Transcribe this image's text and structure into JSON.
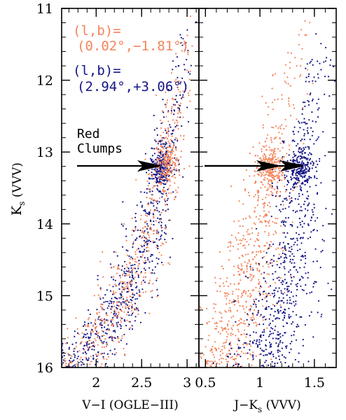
{
  "chart_data": [
    {
      "type": "scatter",
      "panel": "left",
      "xlabel": "V−I (OGLE−III)",
      "ylabel": "K_s (VVV)",
      "xlim": [
        1.62,
        3.13
      ],
      "ylim": [
        16,
        11
      ],
      "y_inverted": true,
      "xticks": [
        2,
        2.5,
        3
      ],
      "xtick_labels": [
        "2",
        "2.5",
        "3"
      ],
      "yticks": [
        11,
        12,
        13,
        14,
        15,
        16
      ],
      "ytick_labels": [
        "11",
        "12",
        "13",
        "14",
        "15",
        "16"
      ],
      "grid": false,
      "legend": [
        {
          "line1": "(l,b)=",
          "line2": "(0.02°,−1.81°)",
          "color": "#f4845a"
        },
        {
          "line1": "(l,b)=",
          "line2": "(2.94°,+3.06°)",
          "color": "#151587"
        }
      ],
      "annotation": {
        "line1": "Red",
        "line2": "Clumps",
        "arrow_from": [
          1.8,
          13.2
        ],
        "arrow_to": [
          2.82,
          13.2
        ]
      },
      "series": [
        {
          "color": "#151587",
          "n_points": 900,
          "red_clump": {
            "x": 2.72,
            "y": 13.2
          },
          "trend": [
            [
              1.7,
              16.0
            ],
            [
              2.2,
              15.3
            ],
            [
              2.55,
              14.2
            ],
            [
              2.75,
              13.0
            ],
            [
              2.95,
              12.0
            ]
          ]
        },
        {
          "color": "#f4845a",
          "n_points": 700,
          "red_clump": {
            "x": 2.78,
            "y": 13.15
          },
          "trend": [
            [
              1.8,
              16.0
            ],
            [
              2.3,
              15.0
            ],
            [
              2.7,
              13.6
            ],
            [
              2.85,
              12.5
            ],
            [
              3.0,
              11.3
            ]
          ]
        }
      ]
    },
    {
      "type": "scatter",
      "panel": "right",
      "xlabel": "J−K_s (VVV)",
      "xlim": [
        0.44,
        1.7
      ],
      "ylim": [
        16,
        11
      ],
      "y_inverted": true,
      "xticks": [
        0.5,
        1,
        1.5
      ],
      "xtick_labels": [
        "0.5",
        "1",
        "1.5"
      ],
      "yticks": [
        11,
        12,
        13,
        14,
        15,
        16
      ],
      "grid": false,
      "annotation": {
        "arrow1_from": [
          0.45,
          13.2
        ],
        "arrow1_to": [
          1.12,
          13.2
        ],
        "arrow2_from": [
          0.45,
          13.2
        ],
        "arrow2_to": [
          1.38,
          13.2
        ]
      },
      "series": [
        {
          "color": "#f4845a",
          "n_points": 900,
          "red_clump": {
            "x": 1.1,
            "y": 13.2
          },
          "trend": [
            [
              0.65,
              16.0
            ],
            [
              0.85,
              15.0
            ],
            [
              1.0,
              14.0
            ],
            [
              1.1,
              13.0
            ],
            [
              1.3,
              11.8
            ],
            [
              1.5,
              11.0
            ]
          ]
        },
        {
          "color": "#151587",
          "n_points": 900,
          "red_clump": {
            "x": 1.38,
            "y": 13.2
          },
          "trend": [
            [
              1.05,
              16.0
            ],
            [
              1.2,
              15.0
            ],
            [
              1.32,
              14.0
            ],
            [
              1.4,
              13.0
            ],
            [
              1.5,
              12.0
            ],
            [
              1.6,
              11.0
            ]
          ]
        }
      ]
    }
  ]
}
